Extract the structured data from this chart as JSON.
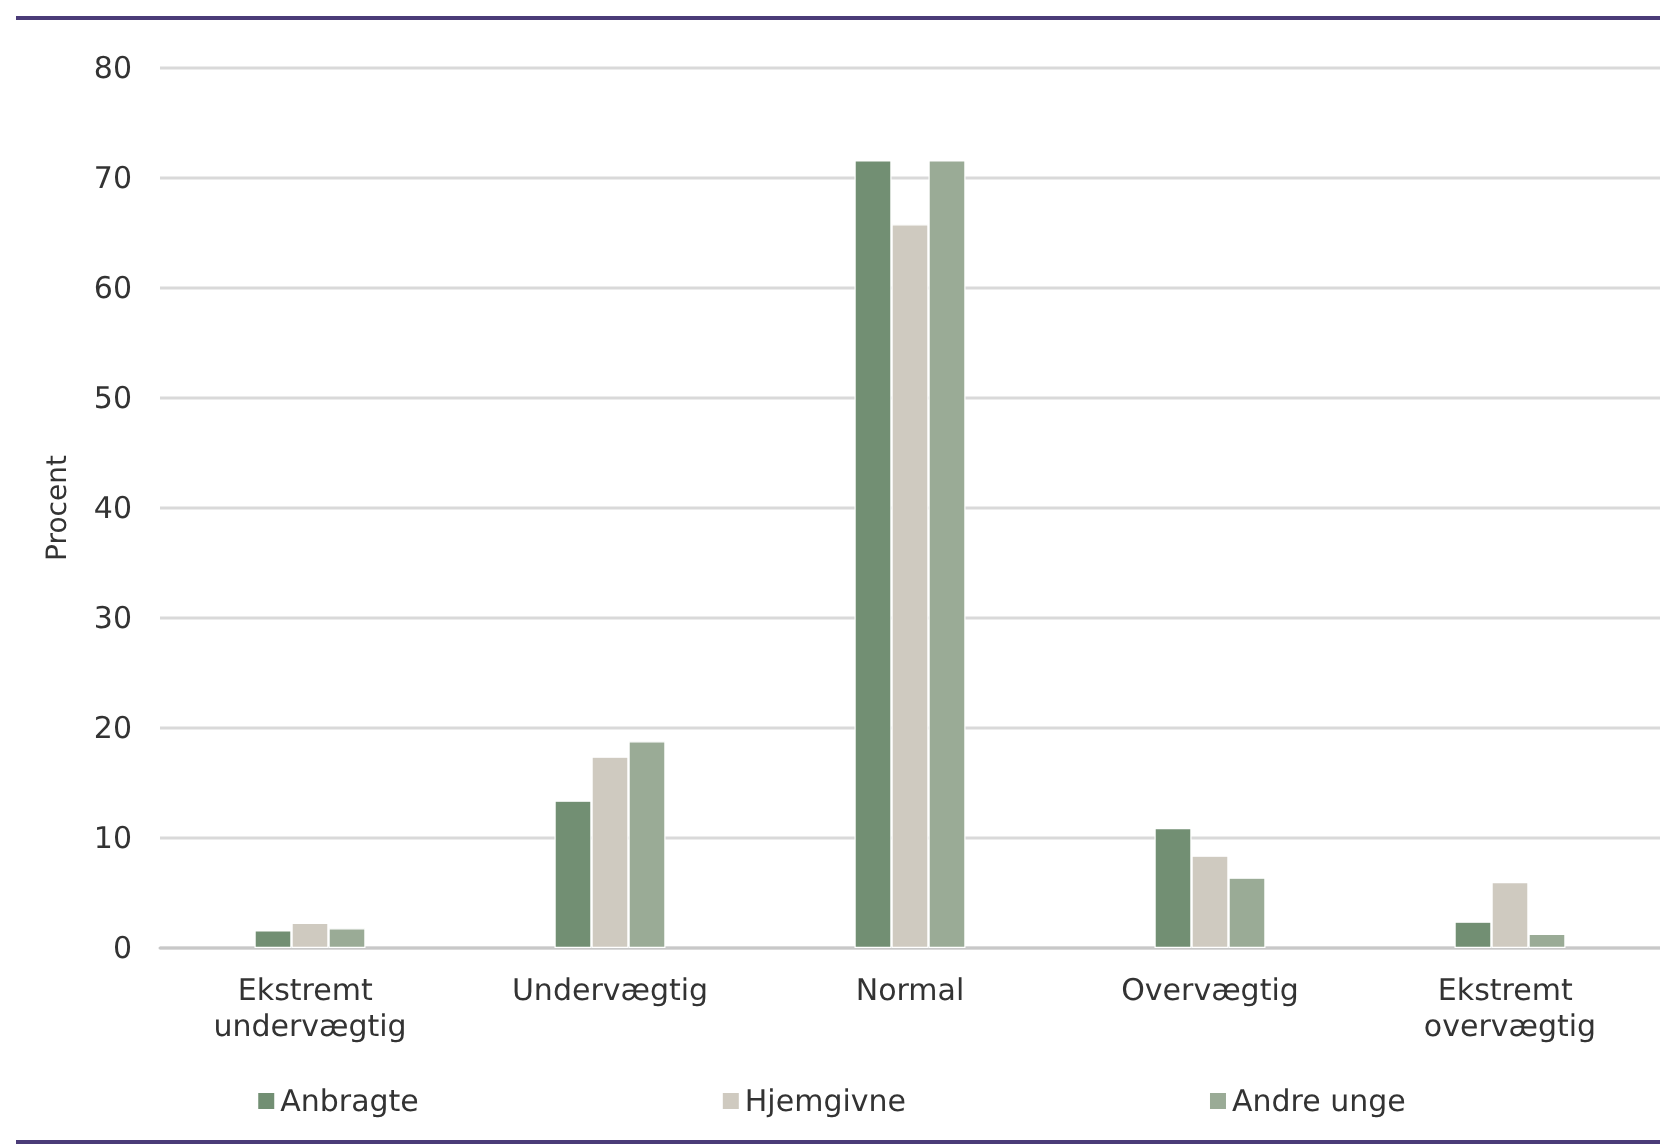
{
  "chart_data": {
    "type": "bar",
    "ylabel": "Procent",
    "categories": [
      "Ekstremt undervægtig",
      "Undervægtig",
      "Normal",
      "Overvægtig",
      "Ekstremt overvægtig"
    ],
    "series": [
      {
        "name": "Anbragte",
        "color": "#728f73",
        "values": [
          1.6,
          13.4,
          71.6,
          10.9,
          2.4
        ]
      },
      {
        "name": "Hjemgivne",
        "color": "#cfcac0",
        "values": [
          2.3,
          17.4,
          65.8,
          8.4,
          6.0
        ]
      },
      {
        "name": "Andre unge",
        "color": "#9aab96",
        "values": [
          1.8,
          18.8,
          71.6,
          6.4,
          1.3
        ]
      }
    ],
    "ylim": [
      0,
      80
    ],
    "yticks": [
      0,
      10,
      20,
      30,
      40,
      50,
      60,
      70,
      80
    ],
    "grid": "y",
    "legend": "bottom"
  }
}
